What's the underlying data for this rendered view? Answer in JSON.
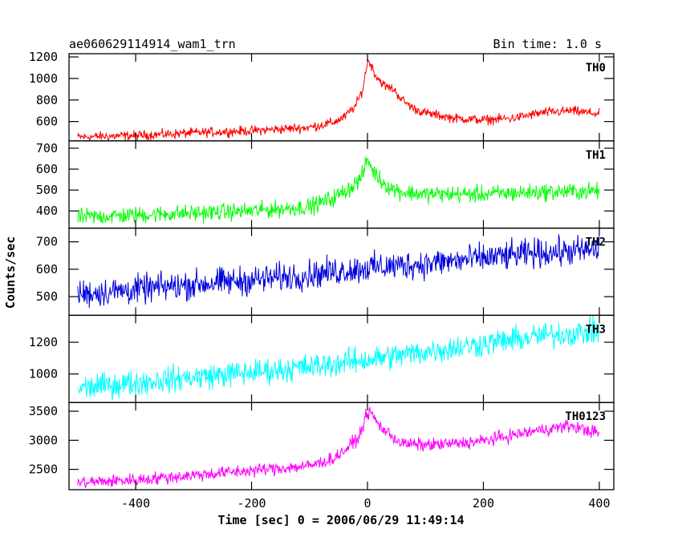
{
  "header": {
    "title": "ae060629114914_wam1_trn",
    "bin_time": "Bin time: 1.0 s"
  },
  "chart_data": {
    "type": "line",
    "xlabel": "Time [sec] 0 = 2006/06/29 11:49:14",
    "ylabel": "Counts/sec",
    "xlim": [
      -515,
      425
    ],
    "x_ticks": [
      -400,
      -200,
      0,
      200,
      400
    ],
    "bin_time_s": 1.0,
    "panels": [
      {
        "name": "TH0",
        "color": "#ff0000",
        "ylim": [
          420,
          1230
        ],
        "y_ticks": [
          600,
          800,
          1000,
          1200
        ],
        "noise": 22,
        "keypoints": [
          [
            -500,
            455
          ],
          [
            -400,
            470
          ],
          [
            -300,
            495
          ],
          [
            -200,
            515
          ],
          [
            -100,
            545
          ],
          [
            -60,
            590
          ],
          [
            -40,
            640
          ],
          [
            -20,
            750
          ],
          [
            -8,
            900
          ],
          [
            0,
            1160
          ],
          [
            5,
            1140
          ],
          [
            15,
            1020
          ],
          [
            30,
            930
          ],
          [
            45,
            900
          ],
          [
            60,
            800
          ],
          [
            80,
            720
          ],
          [
            100,
            680
          ],
          [
            150,
            630
          ],
          [
            200,
            615
          ],
          [
            250,
            630
          ],
          [
            300,
            680
          ],
          [
            350,
            700
          ],
          [
            400,
            670
          ]
        ]
      },
      {
        "name": "TH1",
        "color": "#00ff00",
        "ylim": [
          318,
          735
        ],
        "y_ticks": [
          400,
          500,
          600,
          700
        ],
        "noise": 20,
        "keypoints": [
          [
            -500,
            370
          ],
          [
            -400,
            380
          ],
          [
            -300,
            390
          ],
          [
            -200,
            400
          ],
          [
            -100,
            420
          ],
          [
            -60,
            460
          ],
          [
            -30,
            510
          ],
          [
            -10,
            560
          ],
          [
            0,
            650
          ],
          [
            10,
            590
          ],
          [
            25,
            540
          ],
          [
            40,
            510
          ],
          [
            60,
            490
          ],
          [
            100,
            480
          ],
          [
            200,
            480
          ],
          [
            300,
            490
          ],
          [
            400,
            495
          ]
        ]
      },
      {
        "name": "TH2",
        "color": "#0000dd",
        "ylim": [
          432,
          750
        ],
        "y_ticks": [
          500,
          600,
          700
        ],
        "noise": 26,
        "keypoints": [
          [
            -500,
            510
          ],
          [
            -400,
            525
          ],
          [
            -300,
            545
          ],
          [
            -200,
            560
          ],
          [
            -100,
            580
          ],
          [
            0,
            605
          ],
          [
            100,
            620
          ],
          [
            200,
            640
          ],
          [
            300,
            660
          ],
          [
            400,
            670
          ]
        ]
      },
      {
        "name": "TH3",
        "color": "#00ffff",
        "ylim": [
          820,
          1370
        ],
        "y_ticks": [
          1000,
          1200
        ],
        "noise": 40,
        "keypoints": [
          [
            -500,
            910
          ],
          [
            -400,
            945
          ],
          [
            -300,
            980
          ],
          [
            -200,
            1010
          ],
          [
            -100,
            1045
          ],
          [
            0,
            1090
          ],
          [
            100,
            1140
          ],
          [
            200,
            1190
          ],
          [
            300,
            1240
          ],
          [
            400,
            1270
          ]
        ]
      },
      {
        "name": "TH0123",
        "color": "#ff00ff",
        "ylim": [
          2150,
          3650
        ],
        "y_ticks": [
          2500,
          3000,
          3500
        ],
        "noise": 55,
        "keypoints": [
          [
            -500,
            2270
          ],
          [
            -400,
            2320
          ],
          [
            -300,
            2400
          ],
          [
            -200,
            2480
          ],
          [
            -100,
            2560
          ],
          [
            -60,
            2680
          ],
          [
            -40,
            2820
          ],
          [
            -15,
            3050
          ],
          [
            0,
            3480
          ],
          [
            8,
            3450
          ],
          [
            20,
            3250
          ],
          [
            40,
            3090
          ],
          [
            60,
            2940
          ],
          [
            100,
            2920
          ],
          [
            150,
            2940
          ],
          [
            200,
            2990
          ],
          [
            300,
            3180
          ],
          [
            350,
            3250
          ],
          [
            400,
            3120
          ]
        ]
      }
    ]
  }
}
